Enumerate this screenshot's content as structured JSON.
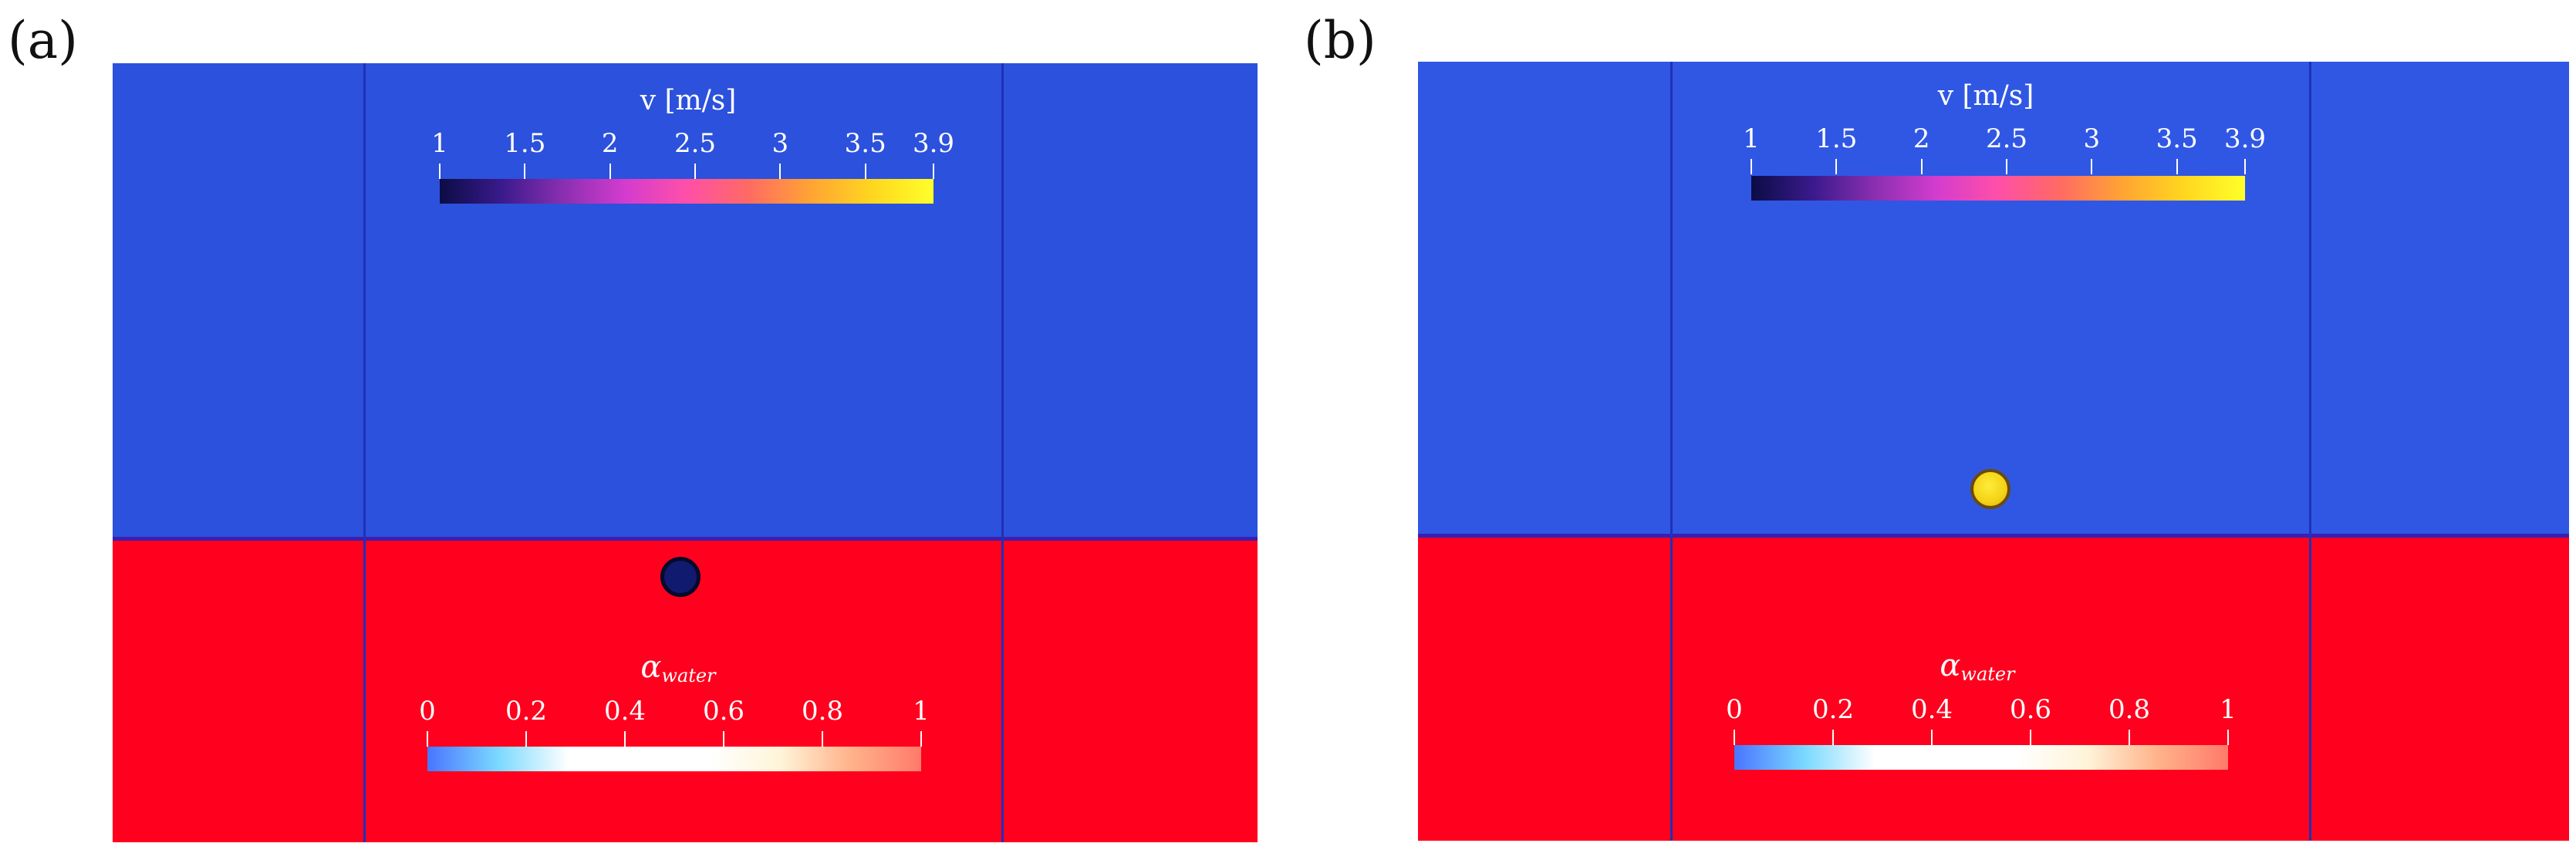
{
  "colors": {
    "air_a": "#2c51dc",
    "air_b": "#3057e4",
    "water": "#ff001e",
    "interface": "#3a1fb0",
    "grid_line": "#1f30b8",
    "text": "#ffffff",
    "bubble_a_fill": "#101a6e",
    "bubble_a_border": "#050a2a",
    "bubble_b_fill": "#f6d919",
    "bubble_b_border": "#6a4a10"
  },
  "velocity_colormap": [
    "#0b0c45",
    "#3a1a8c",
    "#8a2fb0",
    "#d33ccf",
    "#ff4fa8",
    "#ff6a63",
    "#ffa334",
    "#ffd61f",
    "#ffff2a"
  ],
  "alpha_colormap": [
    "#4a74ff",
    "#7ad9ff",
    "#ffffff",
    "#ffffff",
    "#ffffff",
    "#fff4d9",
    "#ffb38a",
    "#ff7a6a"
  ],
  "panels": [
    {
      "id": "a",
      "label": "(a)",
      "velocity_colorbar": {
        "title": "v [m/s]",
        "ticks": [
          "1",
          "1.5",
          "2",
          "2.5",
          "3",
          "3.5",
          "3.9"
        ],
        "values": [
          1,
          1.5,
          2,
          2.5,
          3,
          3.5,
          3.9
        ],
        "range": [
          1,
          3.9
        ]
      },
      "alpha_colorbar": {
        "title_symbol": "α",
        "title_sub": "water",
        "ticks": [
          "0",
          "0.2",
          "0.4",
          "0.6",
          "0.8",
          "1"
        ],
        "values": [
          0,
          0.2,
          0.4,
          0.6,
          0.8,
          1
        ],
        "range": [
          0,
          1
        ]
      },
      "bubble": {
        "location": "below interface",
        "velocity_level": "low"
      }
    },
    {
      "id": "b",
      "label": "(b)",
      "velocity_colorbar": {
        "title": "v [m/s]",
        "ticks": [
          "1",
          "1.5",
          "2",
          "2.5",
          "3",
          "3.5",
          "3.9"
        ],
        "values": [
          1,
          1.5,
          2,
          2.5,
          3,
          3.5,
          3.9
        ],
        "range": [
          1,
          3.9
        ]
      },
      "alpha_colorbar": {
        "title_symbol": "α",
        "title_sub": "water",
        "ticks": [
          "0",
          "0.2",
          "0.4",
          "0.6",
          "0.8",
          "1"
        ],
        "values": [
          0,
          0.2,
          0.4,
          0.6,
          0.8,
          1
        ],
        "range": [
          0,
          1
        ]
      },
      "bubble": {
        "location": "above interface",
        "velocity_level": "high"
      }
    }
  ]
}
